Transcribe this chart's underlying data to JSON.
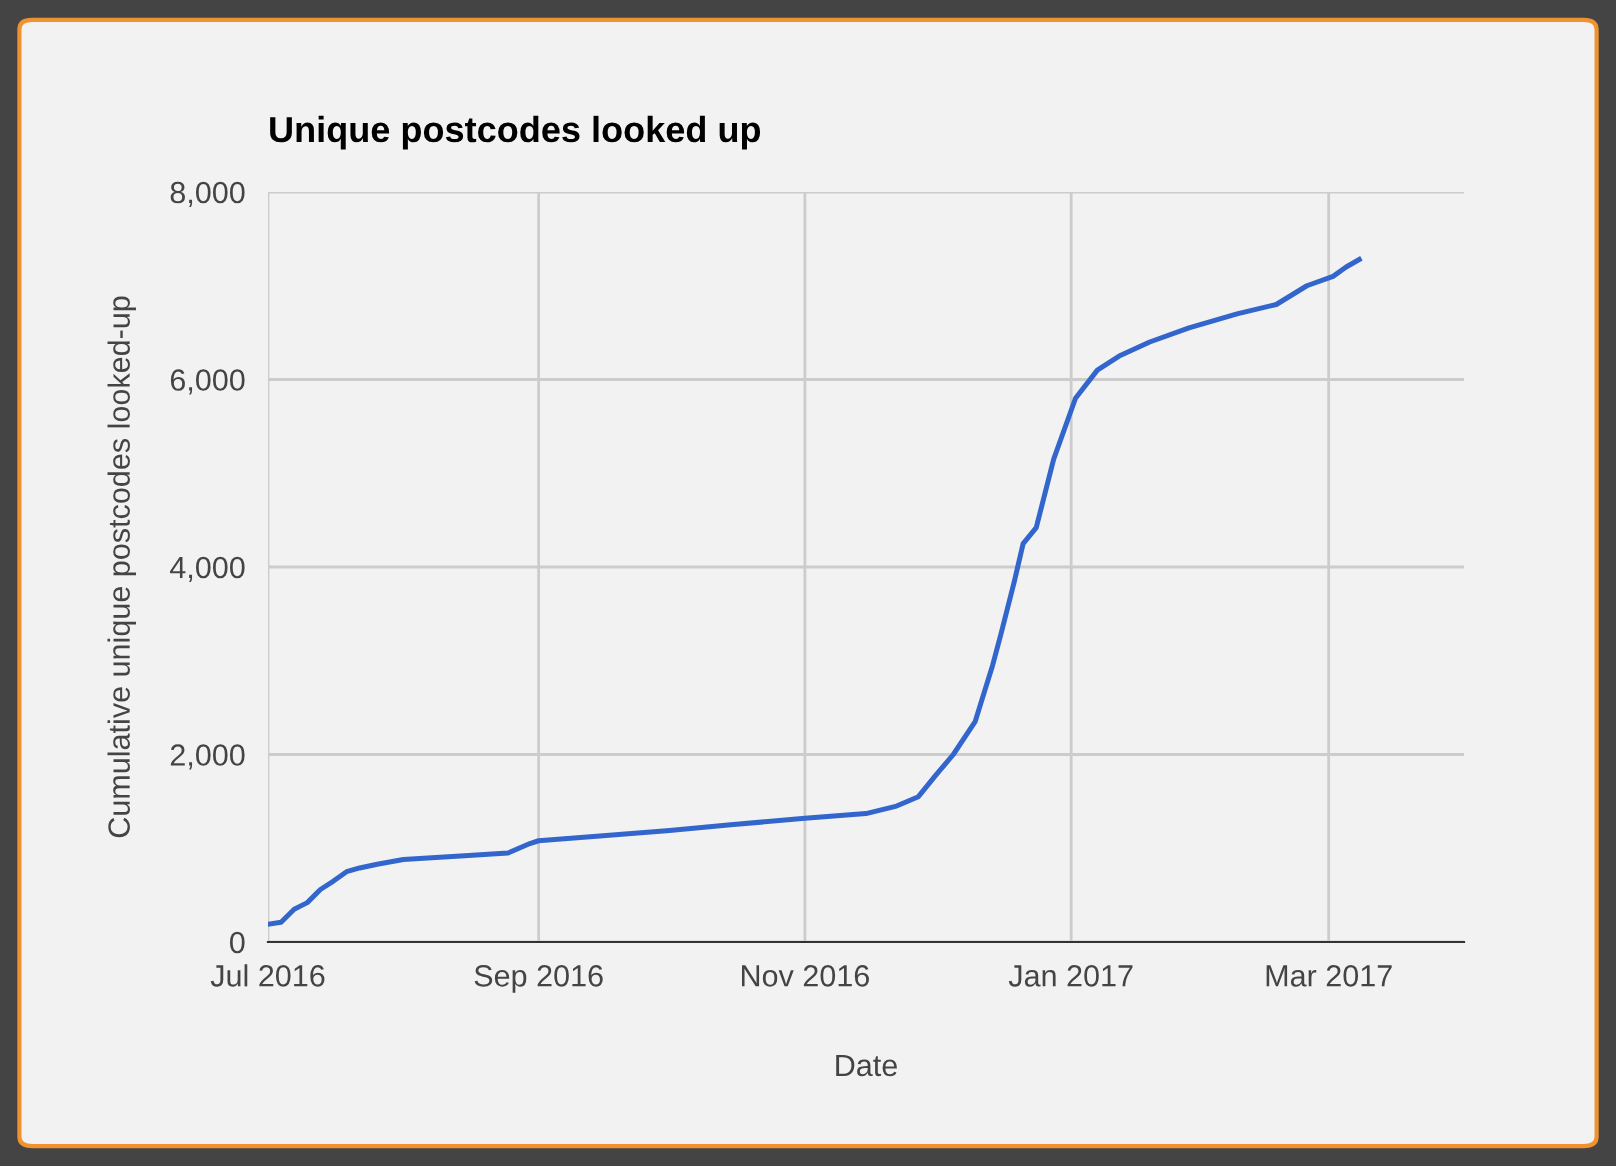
{
  "chart_data": {
    "type": "line",
    "title": "Unique postcodes looked up",
    "xlabel": "Date",
    "ylabel": "Cumulative unique postcodes looked-up",
    "x": [
      "2016-07-01",
      "2016-07-04",
      "2016-07-07",
      "2016-07-10",
      "2016-07-13",
      "2016-07-16",
      "2016-07-19",
      "2016-07-22",
      "2016-07-26",
      "2016-08-01",
      "2016-08-15",
      "2016-08-25",
      "2016-08-30",
      "2016-09-01",
      "2016-09-15",
      "2016-10-01",
      "2016-10-15",
      "2016-11-01",
      "2016-11-15",
      "2016-11-22",
      "2016-11-27",
      "2016-12-01",
      "2016-12-05",
      "2016-12-10",
      "2016-12-12",
      "2016-12-14",
      "2016-12-16",
      "2016-12-19",
      "2016-12-21",
      "2016-12-24",
      "2016-12-28",
      "2017-01-02",
      "2017-01-07",
      "2017-01-12",
      "2017-01-19",
      "2017-01-28",
      "2017-02-08",
      "2017-02-17",
      "2017-02-24",
      "2017-03-02",
      "2017-03-05",
      "2017-03-08"
    ],
    "series": [
      {
        "color": "#3366cc",
        "values": [
          190,
          210,
          350,
          420,
          560,
          650,
          750,
          790,
          830,
          880,
          920,
          950,
          1050,
          1080,
          1130,
          1190,
          1250,
          1320,
          1370,
          1450,
          1550,
          1780,
          2000,
          2350,
          2650,
          2950,
          3300,
          3850,
          4250,
          4420,
          5150,
          5800,
          6100,
          6250,
          6400,
          6550,
          6700,
          6800,
          7000,
          7100,
          7200,
          7280
        ]
      }
    ],
    "xlim": [
      "2016-07-01",
      "2017-04-01"
    ],
    "xticks": [
      {
        "value": "2016-07-01",
        "label": "Jul 2016"
      },
      {
        "value": "2016-09-01",
        "label": "Sep 2016"
      },
      {
        "value": "2016-11-01",
        "label": "Nov 2016"
      },
      {
        "value": "2017-01-01",
        "label": "Jan 2017"
      },
      {
        "value": "2017-03-01",
        "label": "Mar 2017"
      }
    ],
    "ylim": [
      0,
      8000
    ],
    "yticks": [
      0,
      {
        "value": 2000,
        "label": "2,000"
      },
      {
        "value": 4000,
        "label": "4,000"
      },
      {
        "value": 6000,
        "label": "6,000"
      },
      {
        "value": 8000,
        "label": "8,000"
      }
    ],
    "grid": true,
    "legend": false,
    "marker": "none",
    "line_style": "solid"
  }
}
